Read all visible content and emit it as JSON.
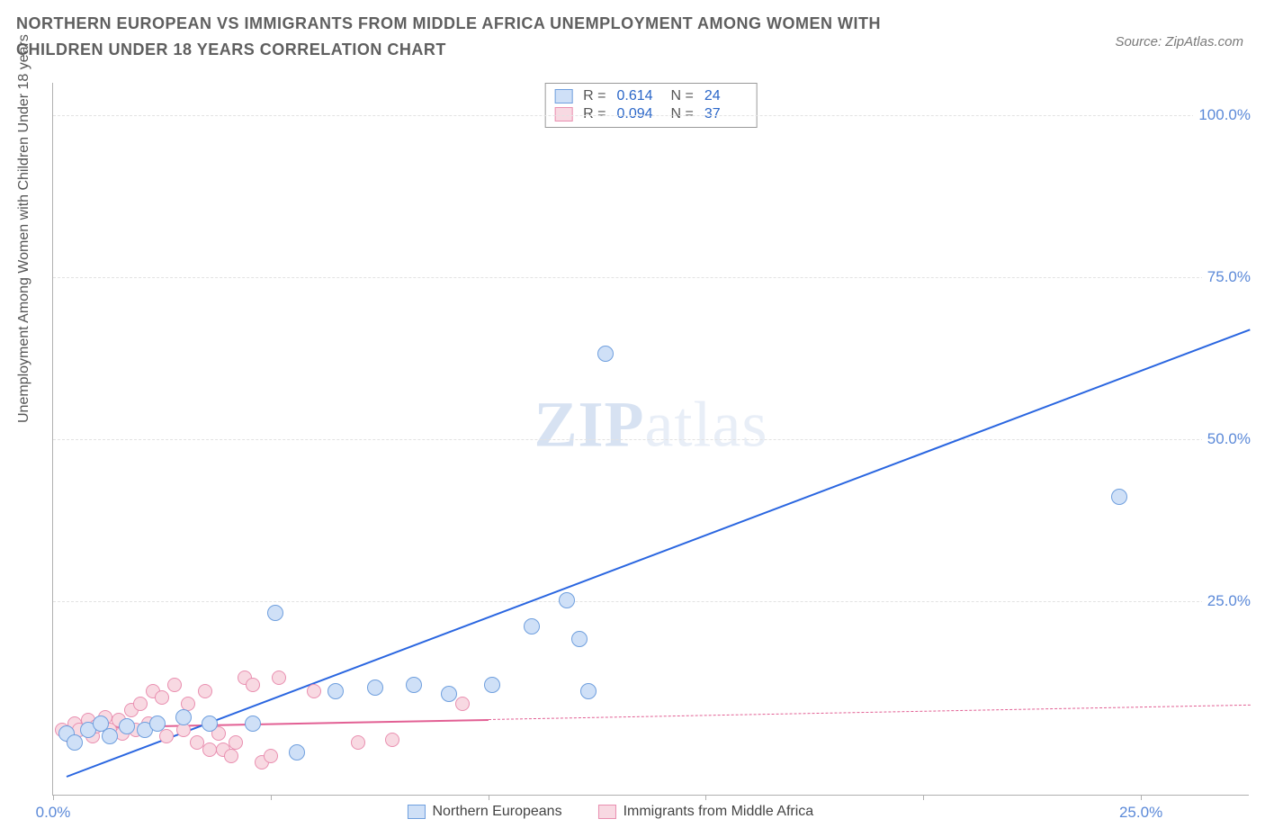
{
  "title": "NORTHERN EUROPEAN VS IMMIGRANTS FROM MIDDLE AFRICA UNEMPLOYMENT AMONG WOMEN WITH CHILDREN UNDER 18 YEARS CORRELATION CHART",
  "source": "Source: ZipAtlas.com",
  "ylabel": "Unemployment Among Women with Children Under 18 years",
  "watermark_a": "ZIP",
  "watermark_b": "atlas",
  "chart": {
    "type": "scatter",
    "background_color": "#ffffff",
    "grid_color": "#e3e3e3",
    "axis_color": "#b0b0b0",
    "tick_label_color": "#5b89d8",
    "xlim": [
      0,
      27.5
    ],
    "ylim": [
      -5,
      105
    ],
    "x_ticks_major": [
      0,
      25
    ],
    "x_ticks_minor": [
      5,
      10,
      15,
      20
    ],
    "y_ticks": [
      25,
      50,
      75,
      100
    ],
    "x_tick_labels": {
      "0": "0.0%",
      "25": "25.0%"
    },
    "y_tick_labels": {
      "25": "25.0%",
      "50": "50.0%",
      "75": "75.0%",
      "100": "100.0%"
    }
  },
  "series": {
    "blue": {
      "label": "Northern Europeans",
      "fill": "#cfe0f7",
      "stroke": "#6f9fde",
      "line_color": "#2a66e0",
      "marker_radius": 9,
      "stats": {
        "R": "0.614",
        "N": "24"
      },
      "trend": {
        "x1": 0.3,
        "y1": -2,
        "x2": 27.5,
        "y2": 67,
        "dash_from_x": null
      },
      "points": [
        {
          "x": 0.3,
          "y": 4.5
        },
        {
          "x": 0.5,
          "y": 3
        },
        {
          "x": 0.8,
          "y": 5
        },
        {
          "x": 1.1,
          "y": 6
        },
        {
          "x": 1.3,
          "y": 4
        },
        {
          "x": 1.7,
          "y": 5.5
        },
        {
          "x": 2.1,
          "y": 5
        },
        {
          "x": 2.4,
          "y": 6
        },
        {
          "x": 3.0,
          "y": 7
        },
        {
          "x": 3.6,
          "y": 6
        },
        {
          "x": 4.6,
          "y": 6
        },
        {
          "x": 5.1,
          "y": 23
        },
        {
          "x": 5.6,
          "y": 1.5
        },
        {
          "x": 6.5,
          "y": 11
        },
        {
          "x": 7.4,
          "y": 11.5
        },
        {
          "x": 8.3,
          "y": 12
        },
        {
          "x": 9.1,
          "y": 10.5
        },
        {
          "x": 10.1,
          "y": 12
        },
        {
          "x": 11.0,
          "y": 21
        },
        {
          "x": 11.8,
          "y": 25
        },
        {
          "x": 12.1,
          "y": 19
        },
        {
          "x": 12.3,
          "y": 11
        },
        {
          "x": 12.7,
          "y": 63
        },
        {
          "x": 24.5,
          "y": 41
        }
      ]
    },
    "pink": {
      "label": "Immigrants from Middle Africa",
      "fill": "#f8d9e2",
      "stroke": "#e98fb0",
      "line_color": "#e26094",
      "marker_radius": 8,
      "stats": {
        "R": "0.094",
        "N": "37"
      },
      "trend": {
        "x1": 0.2,
        "y1": 5.5,
        "x2": 27.5,
        "y2": 9,
        "dash_from_x": 10
      },
      "points": [
        {
          "x": 0.2,
          "y": 5
        },
        {
          "x": 0.4,
          "y": 4
        },
        {
          "x": 0.5,
          "y": 6
        },
        {
          "x": 0.6,
          "y": 5
        },
        {
          "x": 0.8,
          "y": 6.5
        },
        {
          "x": 0.9,
          "y": 4
        },
        {
          "x": 1.0,
          "y": 5.5
        },
        {
          "x": 1.2,
          "y": 7
        },
        {
          "x": 1.3,
          "y": 5
        },
        {
          "x": 1.5,
          "y": 6.5
        },
        {
          "x": 1.6,
          "y": 4.5
        },
        {
          "x": 1.8,
          "y": 8
        },
        {
          "x": 1.9,
          "y": 5
        },
        {
          "x": 2.0,
          "y": 9
        },
        {
          "x": 2.2,
          "y": 6
        },
        {
          "x": 2.3,
          "y": 11
        },
        {
          "x": 2.5,
          "y": 10
        },
        {
          "x": 2.6,
          "y": 4
        },
        {
          "x": 2.8,
          "y": 12
        },
        {
          "x": 3.0,
          "y": 5
        },
        {
          "x": 3.1,
          "y": 9
        },
        {
          "x": 3.3,
          "y": 3
        },
        {
          "x": 3.5,
          "y": 11
        },
        {
          "x": 3.6,
          "y": 2
        },
        {
          "x": 3.8,
          "y": 4.5
        },
        {
          "x": 3.9,
          "y": 2
        },
        {
          "x": 4.1,
          "y": 1
        },
        {
          "x": 4.2,
          "y": 3
        },
        {
          "x": 4.4,
          "y": 13
        },
        {
          "x": 4.6,
          "y": 12
        },
        {
          "x": 4.8,
          "y": 0
        },
        {
          "x": 5.0,
          "y": 1
        },
        {
          "x": 5.2,
          "y": 13
        },
        {
          "x": 6.0,
          "y": 11
        },
        {
          "x": 7.0,
          "y": 3
        },
        {
          "x": 7.8,
          "y": 3.5
        },
        {
          "x": 9.4,
          "y": 9
        }
      ]
    }
  },
  "legend_top": [
    "blue",
    "pink"
  ],
  "legend_bottom": [
    "blue",
    "pink"
  ]
}
